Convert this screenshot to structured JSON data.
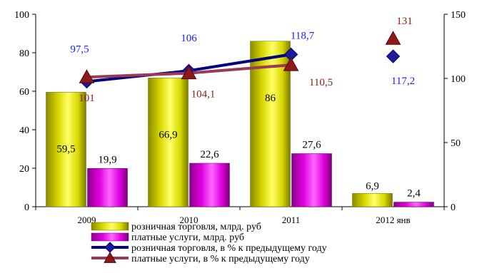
{
  "chart_data": {
    "type": "bar",
    "categories": [
      "2009",
      "2010",
      "2011",
      "2012 янв"
    ],
    "left_axis": {
      "ylim": [
        0,
        100
      ],
      "ticks": [
        "0",
        "20",
        "40",
        "60",
        "80",
        "100"
      ]
    },
    "right_axis": {
      "ylim": [
        0,
        150
      ],
      "ticks": [
        "0",
        "50",
        "100",
        "150"
      ]
    },
    "bar_series": [
      {
        "name": "розничная торговля, млрд. руб",
        "values": [
          59.5,
          66.9,
          86,
          6.9
        ],
        "labels": [
          "59,5",
          "66,9",
          "86",
          "6,9"
        ],
        "color": "#e6e600"
      },
      {
        "name": "платные услуги, млрд. руб",
        "values": [
          19.9,
          22.6,
          27.6,
          2.4
        ],
        "labels": [
          "19,9",
          "22,6",
          "27,6",
          "2,4"
        ],
        "color": "#e600e6"
      }
    ],
    "line_series": [
      {
        "name": "розничная торговля, в % к предыдущему году",
        "values": [
          97.5,
          106,
          118.7,
          117.2
        ],
        "labels": [
          "97,5",
          "106",
          "118,7",
          "117,2"
        ],
        "color": "#000080",
        "label_color": "#1a1aff",
        "marker": "diamond",
        "connected_points": 3
      },
      {
        "name": "платные услуги, в % к предыдущему году",
        "values": [
          101,
          104.1,
          110.5,
          131
        ],
        "labels": [
          "101",
          "104,1",
          "110,5",
          "131"
        ],
        "color": "#9a3a5a",
        "label_color": "#8b1a1a",
        "marker": "triangle",
        "connected_points": 3
      }
    ],
    "legend_position": "bottom"
  }
}
